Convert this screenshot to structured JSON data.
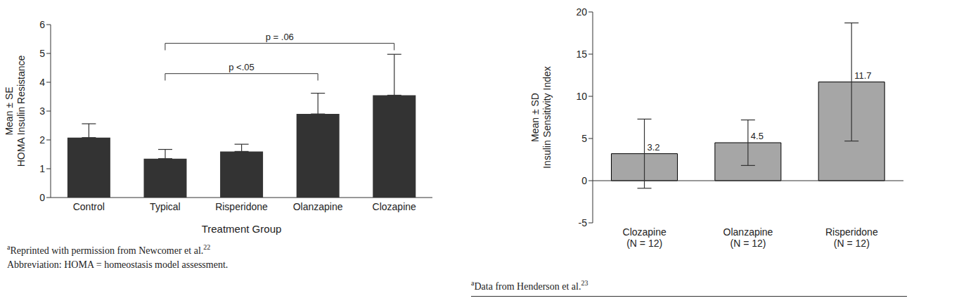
{
  "chart_data": [
    {
      "type": "bar",
      "y_label": "Mean ± SE\nHOMA Insulin Resistance",
      "x_label": "Treatment Group",
      "categories": [
        "Control",
        "Typical",
        "Risperidone",
        "Olanzapine",
        "Clozapine"
      ],
      "values": [
        2.08,
        1.35,
        1.6,
        2.9,
        3.55
      ],
      "errors_up": [
        0.48,
        0.32,
        0.25,
        0.72,
        1.42
      ],
      "color": "#333333",
      "ylim": [
        0,
        6
      ],
      "yticks": [
        0,
        1,
        2,
        3,
        4,
        5,
        6
      ],
      "grid": false,
      "annotations": [
        {
          "text": "p = .06",
          "from": "Typical",
          "to": "Clozapine",
          "y": 5.35
        },
        {
          "text": "p <.05",
          "from": "Typical",
          "to": "Olanzapine",
          "y": 4.3
        }
      ],
      "footnotes": [
        {
          "mark": "a",
          "text": "Reprinted with permission from Newcomer et al.",
          "ref": "22"
        },
        {
          "text": "Abbreviation: HOMA = homeostasis model assessment."
        }
      ]
    },
    {
      "type": "bar",
      "y_label": "Mean ± SD\nInsulin Sensitivity Index",
      "categories": [
        "Clozapine\n(N = 12)",
        "Olanzapine\n(N = 12)",
        "Risperidone\n(N = 12)"
      ],
      "values": [
        3.2,
        4.5,
        11.7
      ],
      "errors": [
        4.1,
        2.7,
        7.0
      ],
      "color": "#a6a6a6",
      "ylim": [
        -5,
        20
      ],
      "yticks": [
        -5,
        0,
        5,
        10,
        15,
        20
      ],
      "grid": false,
      "data_labels": true,
      "footnotes": [
        {
          "mark": "a",
          "text": "Data from Henderson et al.",
          "ref": "23"
        }
      ]
    }
  ]
}
